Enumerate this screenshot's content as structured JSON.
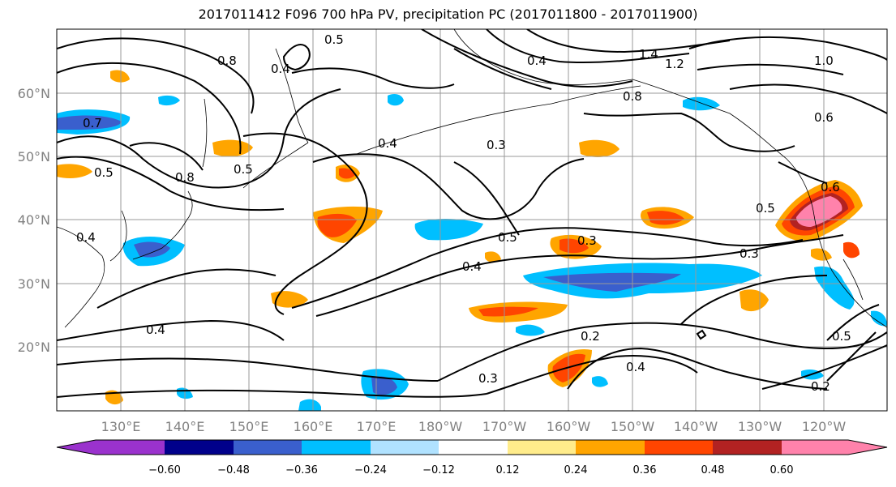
{
  "title": "2017011412 F096 700 hPa PV, precipitation PC (2017011800 - 2017011900)",
  "lat_labels": [
    "60°N",
    "50°N",
    "40°N",
    "30°N",
    "20°N"
  ],
  "lon_labels": [
    "130°E",
    "140°E",
    "150°E",
    "160°E",
    "170°E",
    "180°W",
    "170°W",
    "160°W",
    "150°W",
    "140°W",
    "130°W",
    "120°W"
  ],
  "colorbar": {
    "colors": [
      "#9a32cd",
      "#00008b",
      "#3a5fcd",
      "#00bfff",
      "#b0e2ff",
      "#ffffff",
      "#ffec8b",
      "#ffa500",
      "#ff4500",
      "#b22222",
      "#ff82ab"
    ],
    "ticks": [
      "−0.60",
      "−0.48",
      "−0.36",
      "−0.24",
      "−0.12",
      "0.12",
      "0.24",
      "0.36",
      "0.48",
      "0.60"
    ]
  },
  "contour_labels": [
    "0.8",
    "0.4",
    "0.5",
    "1.4",
    "1.2",
    "1.0",
    "0.7",
    "0.4",
    "0.3",
    "0.8",
    "0.6",
    "0.5",
    "0.8",
    "0.4",
    "0.5",
    "0.3",
    "0.6",
    "0.5",
    "0.4",
    "0.3",
    "0.4",
    "0.5",
    "0.2",
    "0.4",
    "0.3",
    "0.2",
    "0.5",
    "0.4"
  ]
}
